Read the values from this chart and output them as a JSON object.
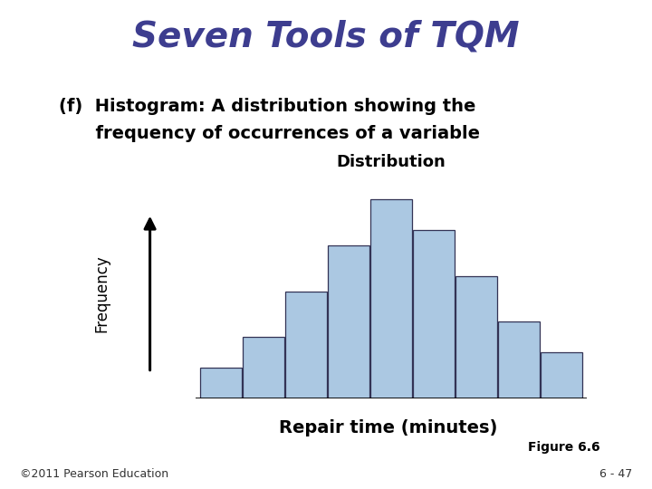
{
  "title": "Seven Tools of TQM",
  "title_color": "#3d3d8f",
  "title_fontsize": 28,
  "subtitle_line1": "(f)  Histogram: A distribution showing the",
  "subtitle_line2": "      frequency of occurrences of a variable",
  "subtitle_fontsize": 14,
  "subtitle_color": "#000000",
  "chart_title": "Distribution",
  "chart_title_fontsize": 13,
  "xlabel": "Repair time (minutes)",
  "xlabel_fontsize": 14,
  "ylabel": "Frequency",
  "ylabel_fontsize": 12,
  "bar_heights": [
    1,
    2,
    3.5,
    5,
    6.5,
    5.5,
    4,
    2.5,
    1.5
  ],
  "bar_color": "#abc8e2",
  "bar_edgecolor": "#333355",
  "figure_bg": "#ffffff",
  "footer_left": "©2011 Pearson Education",
  "footer_right": "6 - 47",
  "figure_note": "Figure 6.6",
  "footer_fontsize": 9,
  "figure_note_fontsize": 10
}
